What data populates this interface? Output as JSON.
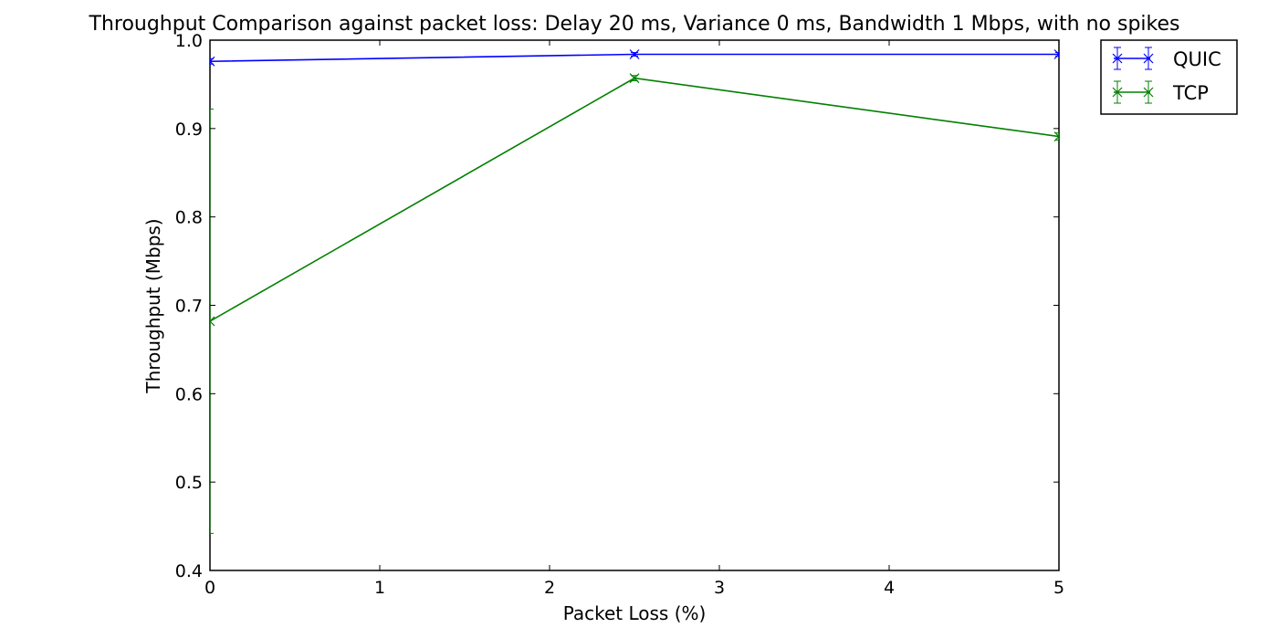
{
  "chart_data": {
    "type": "line",
    "title": "Throughput Comparison against packet loss: Delay 20 ms, Variance 0 ms, Bandwidth 1 Mbps, with no spikes",
    "xlabel": "Packet Loss (%)",
    "ylabel": "Throughput (Mbps)",
    "xlim": [
      0,
      5
    ],
    "ylim": [
      0.4,
      1.0
    ],
    "xticks": [
      "0",
      "1",
      "2",
      "3",
      "4",
      "5"
    ],
    "yticks": [
      "0.4",
      "0.5",
      "0.6",
      "0.7",
      "0.8",
      "0.9",
      "1.0"
    ],
    "grid": false,
    "legend_position": "outside-top-right",
    "series": [
      {
        "name": "QUIC",
        "color": "#0000ff",
        "marker": "x",
        "x": [
          0,
          2.5,
          5
        ],
        "y": [
          0.976,
          0.984,
          0.984
        ],
        "err": [
          0.003,
          0.002,
          0.002
        ]
      },
      {
        "name": "TCP",
        "color": "#008000",
        "marker": "x",
        "x": [
          0,
          2.5,
          5
        ],
        "y": [
          0.682,
          0.957,
          0.891
        ],
        "err": [
          0.24,
          0.003,
          0.004
        ]
      }
    ]
  }
}
